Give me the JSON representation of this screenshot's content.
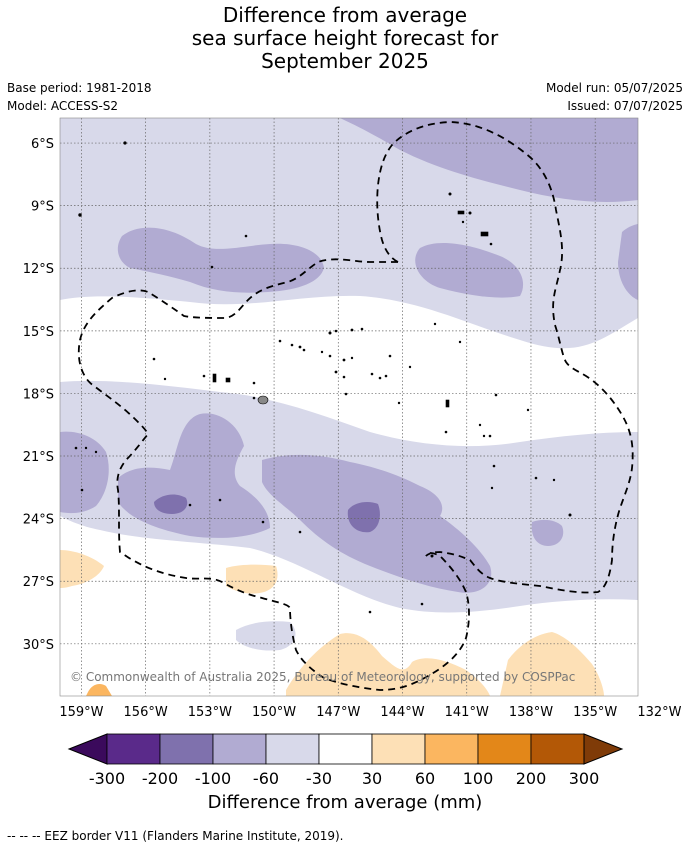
{
  "title": {
    "line1": "Difference from average",
    "line2": "sea surface height forecast for",
    "line3": "September 2025"
  },
  "meta": {
    "base_period": "Base period: 1981-2018",
    "model": "Model: ACCESS-S2",
    "model_run": "Model run: 05/07/2025",
    "issued": "Issued: 07/07/2025"
  },
  "map": {
    "lat_labels": [
      "6°S",
      "9°S",
      "12°S",
      "15°S",
      "18°S",
      "21°S",
      "24°S",
      "27°S",
      "30°S"
    ],
    "lon_labels": [
      "159°W",
      "156°W",
      "153°W",
      "150°W",
      "147°W",
      "144°W",
      "141°W",
      "138°W",
      "135°W",
      "132°W"
    ],
    "copyright": "© Commonwealth of Australia 2025, Bureau of Meteorology, supported by COSPPac",
    "category_colors": {
      "lt_-300": "#3b0a5c",
      "-300_-200": "#5a2a8a",
      "-200_-100": "#7f71ad",
      "-100_-60": "#b1abd2",
      "-60_-30": "#d8d9ea",
      "-30_30": "#ffffff",
      "30_60": "#fde0b6",
      "60_100": "#fbb660",
      "100_200": "#e38719",
      "200_300": "#b35806",
      "gt_300": "#7f3b08"
    }
  },
  "colorbar": {
    "ticks": [
      "-300",
      "-200",
      "-100",
      "-60",
      "-30",
      "30",
      "60",
      "100",
      "200",
      "300"
    ],
    "colors": [
      "#5a2a8a",
      "#7f71ad",
      "#b1abd2",
      "#d8d9ea",
      "#ffffff",
      "#fde0b6",
      "#fbb660",
      "#e38719",
      "#b35806"
    ],
    "low_extend_color": "#3b0a5c",
    "high_extend_color": "#7f3b08",
    "label": "Difference from average (mm)"
  },
  "footnote": "-- -- -- EEZ border V11 (Flanders Marine Institute, 2019)."
}
